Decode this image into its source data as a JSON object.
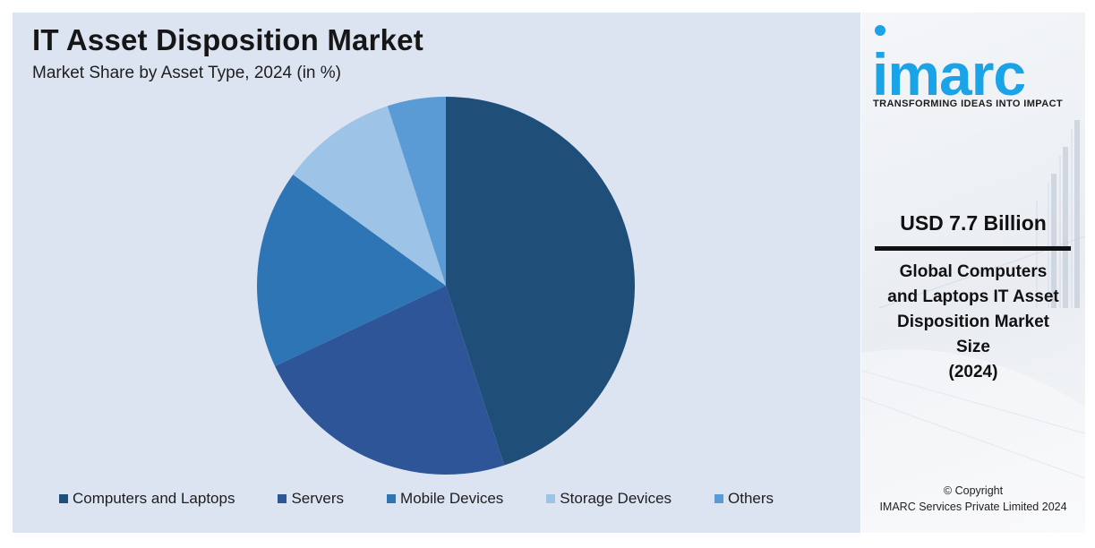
{
  "chart_data": {
    "type": "pie",
    "title": "IT Asset Disposition Market",
    "subtitle": "Market Share by Asset Type, 2024 (in %)",
    "categories": [
      "Computers and Laptops",
      "Servers",
      "Mobile Devices",
      "Storage Devices",
      "Others"
    ],
    "values": [
      45,
      23,
      17,
      10,
      5
    ],
    "colors": [
      "#1f4e79",
      "#2e5597",
      "#2e75b6",
      "#9dc3e6",
      "#5b9bd5"
    ],
    "start_angle_deg": 0,
    "direction": "clockwise",
    "legend_position": "bottom"
  },
  "side": {
    "logo_text": "imarc",
    "tagline": "TRANSFORMING IDEAS INTO IMPACT",
    "market_size": "USD 7.7 Billion",
    "market_size_desc_lines": [
      "Global Computers",
      "and Laptops IT Asset",
      "Disposition Market",
      "Size",
      "(2024)"
    ],
    "copyright_lines": [
      "© Copyright",
      "IMARC Services Private Limited 2024"
    ],
    "brand_color": "#1ba3e8"
  }
}
